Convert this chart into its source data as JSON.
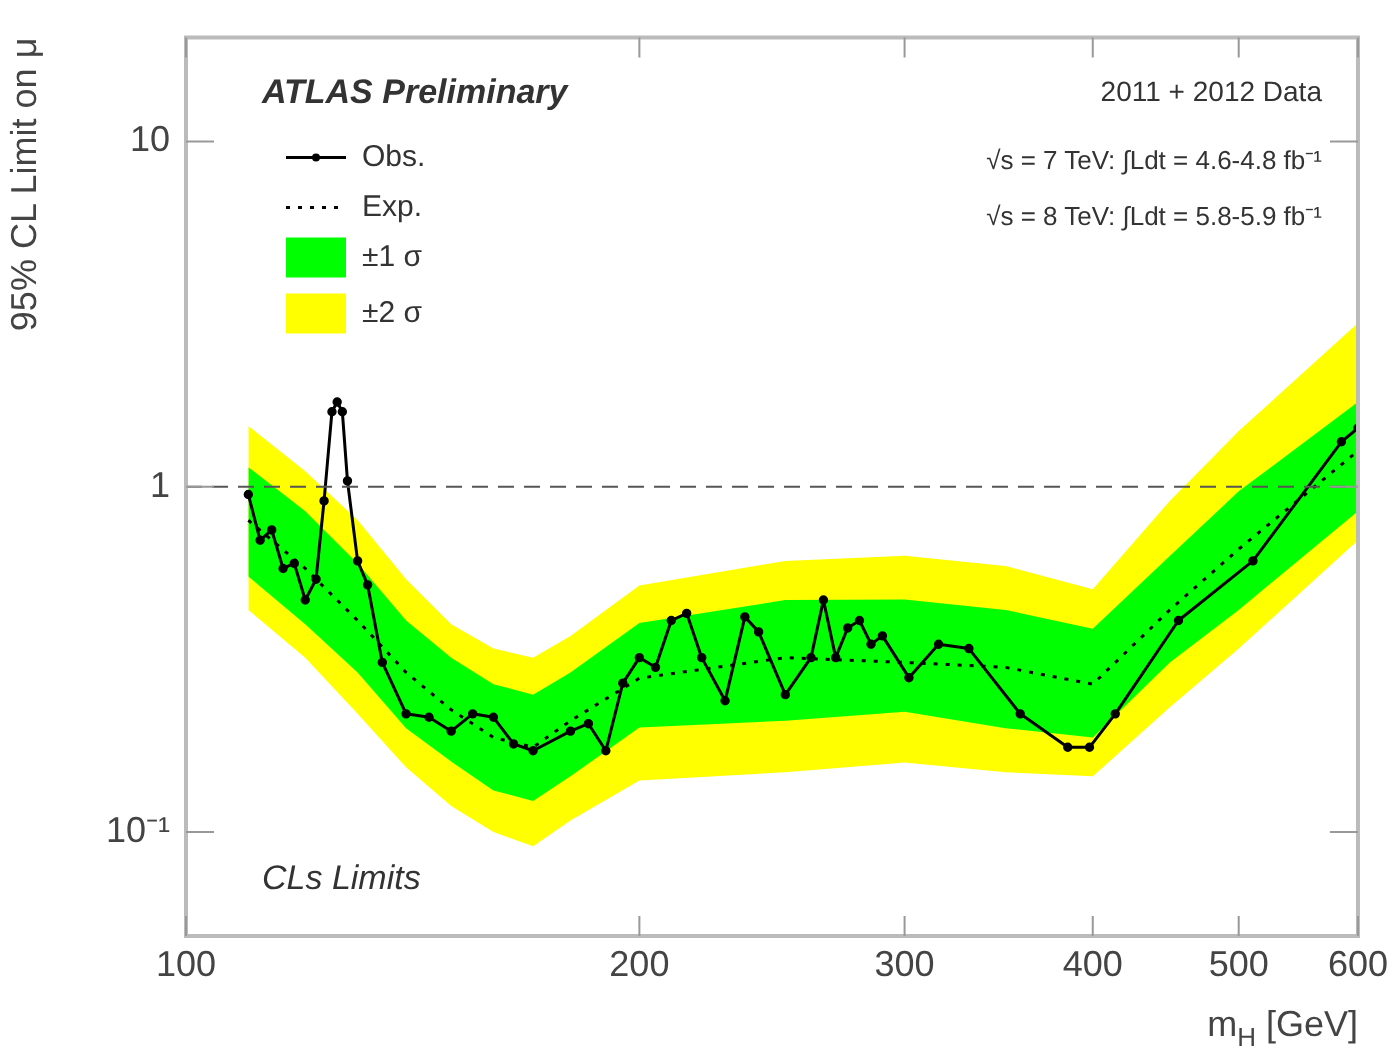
{
  "chart_data": {
    "type": "line",
    "xlabel": "m$_{H}$ [GeV]",
    "ylabel": "95% CL Limit on μ",
    "log": "xy",
    "grid": false,
    "legend": "top left",
    "xlim": [
      100,
      600
    ],
    "xticks": [
      100,
      200,
      300,
      400,
      500,
      600
    ],
    "ylim": [
      0.05,
      20
    ],
    "yticks": [
      {
        "value": 0.1,
        "label": "10⁻¹"
      },
      1,
      10
    ],
    "ref_lines": [
      {
        "axis": "y",
        "value": 1,
        "line_style": "dashed",
        "color": "#555555"
      }
    ],
    "annotations": [
      "ATLAS Preliminary",
      "2011 + 2012 Data",
      "√s = 7 TeV: ∫Ldt = 4.6-4.8 fb⁻¹",
      "√s = 8 TeV: ∫Ldt = 5.8-5.9 fb⁻¹",
      "CLs Limits"
    ],
    "series": [
      {
        "name": "Obs.",
        "color": "#000000",
        "marker": "circle",
        "line_style": "solid",
        "x": [
          110,
          112,
          114,
          116,
          118,
          120,
          122,
          123.5,
          125,
          126,
          127,
          128,
          130,
          132,
          135,
          140,
          145,
          150,
          155,
          160,
          165,
          170,
          180,
          185,
          190,
          195,
          200,
          205,
          210,
          215,
          220,
          228,
          235,
          240,
          250,
          260,
          265,
          270,
          275,
          280,
          285,
          290,
          302,
          316,
          331,
          358,
          385,
          398,
          414,
          456,
          511,
          585,
          600
        ],
        "values": [
          0.95,
          0.7,
          0.75,
          0.58,
          0.6,
          0.47,
          0.54,
          0.91,
          1.65,
          1.76,
          1.65,
          1.04,
          0.61,
          0.52,
          0.31,
          0.22,
          0.215,
          0.196,
          0.22,
          0.215,
          0.18,
          0.172,
          0.196,
          0.206,
          0.172,
          0.27,
          0.32,
          0.3,
          0.41,
          0.43,
          0.32,
          0.24,
          0.42,
          0.38,
          0.25,
          0.32,
          0.47,
          0.32,
          0.39,
          0.41,
          0.35,
          0.37,
          0.28,
          0.35,
          0.34,
          0.22,
          0.176,
          0.176,
          0.22,
          0.41,
          0.61,
          1.35,
          1.48
        ]
      },
      {
        "name": "Exp.",
        "color": "#000000",
        "marker": "none",
        "line_style": "dotted",
        "x": [
          110,
          120,
          130,
          140,
          150,
          160,
          170,
          180,
          200,
          250,
          300,
          350,
          400,
          450,
          500,
          600
        ],
        "values": [
          0.8,
          0.58,
          0.41,
          0.29,
          0.226,
          0.188,
          0.176,
          0.21,
          0.279,
          0.32,
          0.31,
          0.3,
          0.268,
          0.44,
          0.66,
          1.27
        ]
      },
      {
        "name": "±1 σ",
        "color": "#00ff00",
        "type": "line",
        "x": [
          110,
          120,
          130,
          140,
          150,
          160,
          170,
          180,
          200,
          250,
          300,
          350,
          400,
          450,
          500,
          600
        ],
        "values": [
          null,
          null,
          null,
          null,
          null,
          null,
          null,
          null,
          null,
          null,
          null,
          null,
          null,
          null,
          null,
          null
        ],
        "lower": [
          0.55,
          0.4,
          0.29,
          0.2,
          0.16,
          0.132,
          0.123,
          0.145,
          0.201,
          0.21,
          0.223,
          0.2,
          0.188,
          0.31,
          0.44,
          0.85
        ],
        "upper": [
          1.14,
          0.85,
          0.6,
          0.41,
          0.32,
          0.268,
          0.25,
          0.29,
          0.403,
          0.47,
          0.472,
          0.44,
          0.388,
          0.63,
          0.97,
          1.76
        ]
      },
      {
        "name": "±2 σ",
        "color": "#ffff00",
        "type": "line",
        "x": [
          110,
          120,
          130,
          140,
          150,
          160,
          170,
          180,
          200,
          250,
          300,
          350,
          400,
          450,
          500,
          600
        ],
        "values": [
          null,
          null,
          null,
          null,
          null,
          null,
          null,
          null,
          null,
          null,
          null,
          null,
          null,
          null,
          null,
          null
        ],
        "lower": [
          0.44,
          0.32,
          0.22,
          0.154,
          0.119,
          0.1,
          0.091,
          0.108,
          0.141,
          0.149,
          0.159,
          0.149,
          0.145,
          0.23,
          0.34,
          0.7
        ],
        "upper": [
          1.5,
          1.11,
          0.8,
          0.54,
          0.4,
          0.34,
          0.32,
          0.37,
          0.518,
          0.61,
          0.631,
          0.59,
          0.505,
          0.91,
          1.45,
          2.98
        ]
      }
    ]
  }
}
